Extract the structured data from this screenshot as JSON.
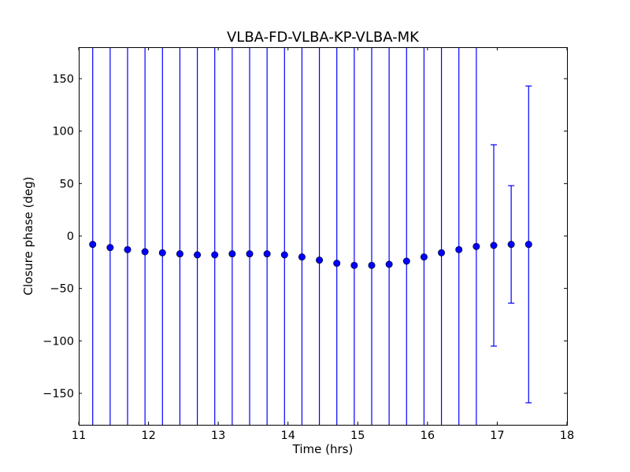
{
  "chart_data": {
    "type": "scatter",
    "title": "VLBA-FD-VLBA-KP-VLBA-MK",
    "xlabel": "Time (hrs)",
    "ylabel": "Closure phase (deg)",
    "xlim": [
      11,
      18
    ],
    "ylim": [
      -180,
      180
    ],
    "x_ticks": [
      11,
      12,
      13,
      14,
      15,
      16,
      17,
      18
    ],
    "y_ticks": [
      -150,
      -100,
      -50,
      0,
      50,
      100,
      150
    ],
    "x_tick_labels": [
      "11",
      "12",
      "13",
      "14",
      "15",
      "16",
      "17",
      "18"
    ],
    "y_tick_labels": [
      "−150",
      "−100",
      "−50",
      "0",
      "50",
      "100",
      "150"
    ],
    "grid": false,
    "color": "#0000ff",
    "marker": "circle",
    "error_bars": true,
    "series": [
      {
        "points": [
          {
            "x": 11.2,
            "y": -8,
            "y_low": -180,
            "y_high": 180
          },
          {
            "x": 11.45,
            "y": -11,
            "y_low": -180,
            "y_high": 180
          },
          {
            "x": 11.7,
            "y": -13,
            "y_low": -180,
            "y_high": 180
          },
          {
            "x": 11.95,
            "y": -15,
            "y_low": -180,
            "y_high": 180
          },
          {
            "x": 12.2,
            "y": -16,
            "y_low": -180,
            "y_high": 180
          },
          {
            "x": 12.45,
            "y": -17,
            "y_low": -180,
            "y_high": 180
          },
          {
            "x": 12.7,
            "y": -18,
            "y_low": -180,
            "y_high": 180
          },
          {
            "x": 12.95,
            "y": -18,
            "y_low": -180,
            "y_high": 180
          },
          {
            "x": 13.2,
            "y": -17,
            "y_low": -180,
            "y_high": 180
          },
          {
            "x": 13.45,
            "y": -17,
            "y_low": -180,
            "y_high": 180
          },
          {
            "x": 13.7,
            "y": -17,
            "y_low": -180,
            "y_high": 180
          },
          {
            "x": 13.95,
            "y": -18,
            "y_low": -180,
            "y_high": 180
          },
          {
            "x": 14.2,
            "y": -20,
            "y_low": -180,
            "y_high": 180
          },
          {
            "x": 14.45,
            "y": -23,
            "y_low": -180,
            "y_high": 180
          },
          {
            "x": 14.7,
            "y": -26,
            "y_low": -180,
            "y_high": 180
          },
          {
            "x": 14.95,
            "y": -28,
            "y_low": -180,
            "y_high": 180
          },
          {
            "x": 15.2,
            "y": -28,
            "y_low": -180,
            "y_high": 180
          },
          {
            "x": 15.45,
            "y": -27,
            "y_low": -180,
            "y_high": 180
          },
          {
            "x": 15.7,
            "y": -24,
            "y_low": -180,
            "y_high": 180
          },
          {
            "x": 15.95,
            "y": -20,
            "y_low": -180,
            "y_high": 180
          },
          {
            "x": 16.2,
            "y": -16,
            "y_low": -180,
            "y_high": 180
          },
          {
            "x": 16.45,
            "y": -13,
            "y_low": -180,
            "y_high": 180
          },
          {
            "x": 16.7,
            "y": -10,
            "y_low": -180,
            "y_high": 180
          },
          {
            "x": 16.95,
            "y": -9,
            "y_low": -105,
            "y_high": 87
          },
          {
            "x": 17.2,
            "y": -8,
            "y_low": -64,
            "y_high": 48
          },
          {
            "x": 17.45,
            "y": -8,
            "y_low": -159,
            "y_high": 143
          }
        ]
      }
    ]
  }
}
